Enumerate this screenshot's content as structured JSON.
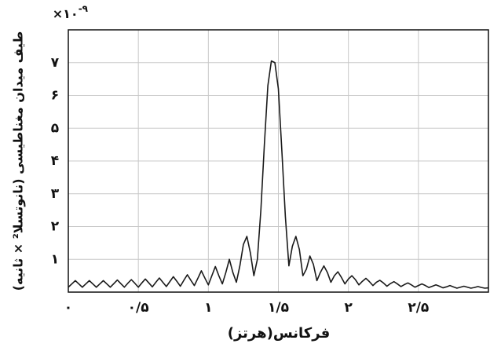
{
  "chart_data": {
    "type": "line",
    "x_label": "فرکانس(هرتز)",
    "y_label": "طیف میدان مغناطیسی (نانوتسلا² × ثانیه)",
    "y_multiplier": {
      "base": "×۱۰",
      "exponent": "-۹"
    },
    "color": "#1a1a1a",
    "grid": true,
    "xlim": [
      0,
      3
    ],
    "ylim": [
      0,
      8
    ],
    "xticks": [
      {
        "value": 0,
        "label": "۰"
      },
      {
        "value": 0.5,
        "label": "۰/۵"
      },
      {
        "value": 1,
        "label": "۱"
      },
      {
        "value": 1.5,
        "label": "۱/۵"
      },
      {
        "value": 2,
        "label": "۲"
      },
      {
        "value": 2.5,
        "label": "۲/۵"
      }
    ],
    "yticks": [
      {
        "value": 1,
        "label": "۱"
      },
      {
        "value": 2,
        "label": "۲"
      },
      {
        "value": 3,
        "label": "۳"
      },
      {
        "value": 4,
        "label": "۴"
      },
      {
        "value": 5,
        "label": "۵"
      },
      {
        "value": 6,
        "label": "۶"
      },
      {
        "value": 7,
        "label": "۷"
      }
    ],
    "x": [
      0,
      0.025,
      0.05,
      0.075,
      0.1,
      0.125,
      0.15,
      0.175,
      0.2,
      0.225,
      0.25,
      0.275,
      0.3,
      0.325,
      0.35,
      0.375,
      0.4,
      0.425,
      0.45,
      0.475,
      0.5,
      0.525,
      0.55,
      0.575,
      0.6,
      0.625,
      0.65,
      0.675,
      0.7,
      0.725,
      0.75,
      0.775,
      0.8,
      0.825,
      0.85,
      0.875,
      0.9,
      0.925,
      0.95,
      0.975,
      1,
      1.025,
      1.05,
      1.075,
      1.1,
      1.125,
      1.15,
      1.175,
      1.2,
      1.225,
      1.25,
      1.275,
      1.3,
      1.325,
      1.35,
      1.375,
      1.4,
      1.425,
      1.45,
      1.475,
      1.5,
      1.525,
      1.55,
      1.575,
      1.6,
      1.625,
      1.65,
      1.675,
      1.7,
      1.725,
      1.75,
      1.775,
      1.8,
      1.825,
      1.85,
      1.875,
      1.9,
      1.925,
      1.95,
      1.975,
      2,
      2.025,
      2.05,
      2.075,
      2.1,
      2.125,
      2.15,
      2.175,
      2.2,
      2.225,
      2.25,
      2.275,
      2.3,
      2.325,
      2.35,
      2.375,
      2.4,
      2.425,
      2.45,
      2.475,
      2.5,
      2.525,
      2.55,
      2.575,
      2.6,
      2.625,
      2.65,
      2.675,
      2.7,
      2.725,
      2.75,
      2.775,
      2.8,
      2.825,
      2.85,
      2.875,
      2.9,
      2.925,
      2.95,
      2.975,
      3
    ],
    "values": [
      0.15,
      0.25,
      0.35,
      0.25,
      0.15,
      0.25,
      0.35,
      0.25,
      0.15,
      0.25,
      0.35,
      0.25,
      0.15,
      0.26,
      0.37,
      0.26,
      0.15,
      0.27,
      0.38,
      0.27,
      0.15,
      0.28,
      0.4,
      0.28,
      0.16,
      0.3,
      0.43,
      0.3,
      0.17,
      0.32,
      0.47,
      0.33,
      0.18,
      0.36,
      0.53,
      0.36,
      0.2,
      0.42,
      0.65,
      0.43,
      0.22,
      0.5,
      0.78,
      0.5,
      0.25,
      0.6,
      1.0,
      0.6,
      0.3,
      0.8,
      1.45,
      1.7,
      1.2,
      0.5,
      1.0,
      2.5,
      4.5,
      6.3,
      7.05,
      7.0,
      6.2,
      4.3,
      2.3,
      0.8,
      1.4,
      1.7,
      1.3,
      0.5,
      0.7,
      1.1,
      0.85,
      0.35,
      0.6,
      0.8,
      0.6,
      0.3,
      0.5,
      0.62,
      0.45,
      0.25,
      0.4,
      0.5,
      0.38,
      0.22,
      0.33,
      0.42,
      0.32,
      0.2,
      0.3,
      0.36,
      0.28,
      0.18,
      0.26,
      0.32,
      0.25,
      0.17,
      0.23,
      0.28,
      0.22,
      0.15,
      0.2,
      0.25,
      0.2,
      0.14,
      0.18,
      0.22,
      0.18,
      0.13,
      0.16,
      0.2,
      0.16,
      0.12,
      0.15,
      0.18,
      0.15,
      0.12,
      0.14,
      0.17,
      0.14,
      0.12,
      0.13
    ]
  }
}
